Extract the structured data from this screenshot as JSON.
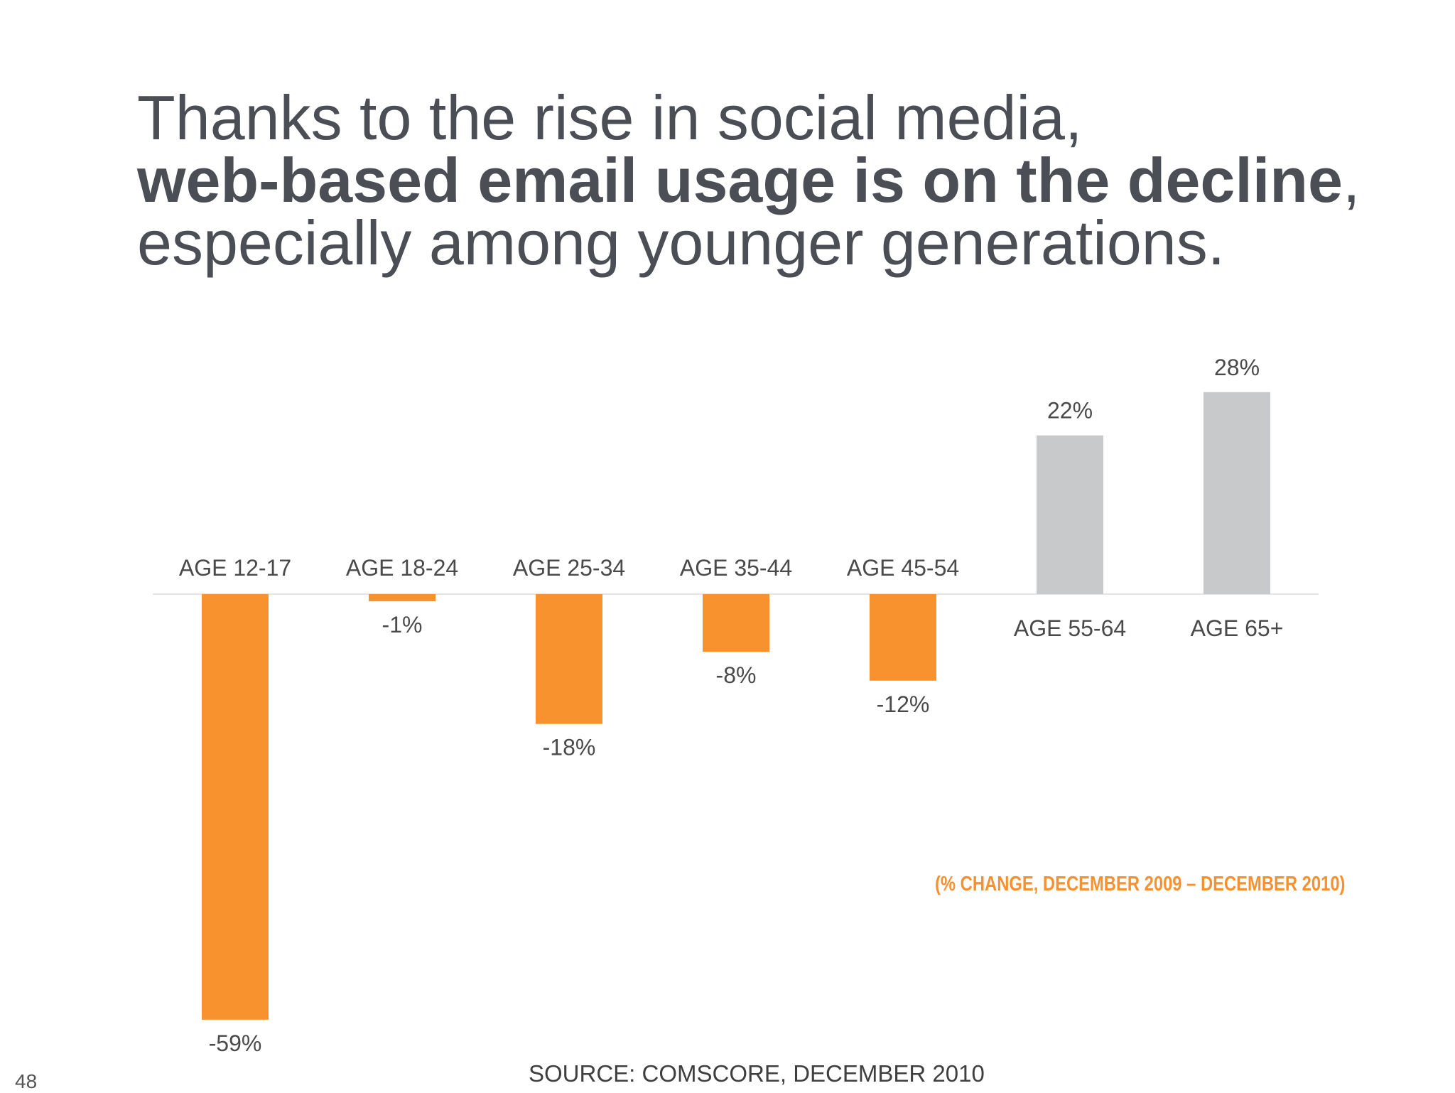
{
  "headline": {
    "line1": "Thanks to the rise in social media,",
    "line2_bold": "web-based email usage is on the decline",
    "line2_rest": ",",
    "line3": "especially among younger generations."
  },
  "chart_data": {
    "type": "bar",
    "categories": [
      "AGE 12-17",
      "AGE 18-24",
      "AGE 25-34",
      "AGE 35-44",
      "AGE 45-54",
      "AGE 55-64",
      "AGE 65+"
    ],
    "values": [
      -59,
      -1,
      -18,
      -8,
      -12,
      22,
      28
    ],
    "value_labels": [
      "-59%",
      "-1%",
      "-18%",
      "-8%",
      "-12%",
      "22%",
      "28%"
    ],
    "unit": "%",
    "colors": {
      "negative": "#f7922f",
      "positive": "#c8c9cb",
      "baseline": "#e4e4e4",
      "label": "#4a4a4a"
    },
    "annotation": "(% CHANGE, DECEMBER 2009 – DECEMBER 2010)"
  },
  "footer": {
    "source": "SOURCE: COMSCORE, DECEMBER 2010",
    "page_number": "48"
  }
}
